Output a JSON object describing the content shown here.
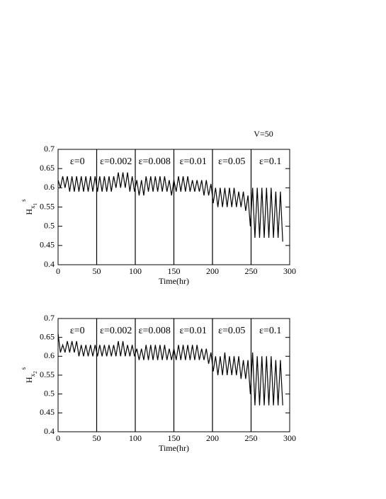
{
  "chart_data": [
    {
      "type": "line",
      "title": "V=50",
      "xlabel": "Time(hr)",
      "ylabel": "H",
      "ylabel_sub": "x",
      "ylabel_subsub": "1",
      "ylabel_sup": "s",
      "xlim": [
        0,
        300
      ],
      "xticks": [
        0,
        50,
        100,
        150,
        200,
        250,
        300
      ],
      "ylim": [
        0.4,
        0.7
      ],
      "yticks": [
        0.4,
        0.45,
        0.5,
        0.55,
        0.6,
        0.65,
        0.7
      ],
      "vlines": [
        50,
        100,
        150,
        200,
        250
      ],
      "annotations": [
        "ε=0",
        "ε=0.002",
        "ε=0.008",
        "ε=0.01",
        "ε=0.05",
        "ε=0.1"
      ],
      "x": [
        0,
        3,
        6,
        9,
        12,
        15,
        18,
        21,
        24,
        27,
        30,
        33,
        36,
        39,
        42,
        45,
        48,
        51,
        54,
        57,
        60,
        63,
        66,
        69,
        72,
        75,
        78,
        81,
        84,
        87,
        90,
        93,
        96,
        99,
        102,
        105,
        108,
        111,
        114,
        117,
        120,
        123,
        126,
        129,
        132,
        135,
        138,
        141,
        144,
        147,
        150,
        153,
        156,
        159,
        162,
        165,
        168,
        171,
        174,
        177,
        180,
        183,
        186,
        189,
        192,
        195,
        198,
        201,
        204,
        207,
        210,
        213,
        216,
        219,
        222,
        225,
        228,
        231,
        234,
        237,
        240,
        243,
        246,
        249,
        252,
        255,
        258,
        261,
        264,
        267,
        270,
        273,
        276,
        279,
        282,
        285,
        288,
        291
      ],
      "series": [
        {
          "color": "#000000",
          "values": [
            0.62,
            0.6,
            0.63,
            0.6,
            0.63,
            0.59,
            0.63,
            0.59,
            0.63,
            0.59,
            0.63,
            0.59,
            0.63,
            0.59,
            0.63,
            0.59,
            0.63,
            0.59,
            0.63,
            0.59,
            0.63,
            0.59,
            0.63,
            0.59,
            0.63,
            0.6,
            0.64,
            0.6,
            0.64,
            0.6,
            0.64,
            0.59,
            0.63,
            0.59,
            0.62,
            0.58,
            0.62,
            0.58,
            0.63,
            0.59,
            0.63,
            0.59,
            0.63,
            0.59,
            0.63,
            0.59,
            0.63,
            0.59,
            0.62,
            0.58,
            0.62,
            0.59,
            0.63,
            0.59,
            0.63,
            0.59,
            0.63,
            0.59,
            0.62,
            0.59,
            0.62,
            0.59,
            0.62,
            0.58,
            0.62,
            0.58,
            0.61,
            0.56,
            0.6,
            0.55,
            0.6,
            0.55,
            0.6,
            0.55,
            0.6,
            0.55,
            0.6,
            0.55,
            0.59,
            0.55,
            0.59,
            0.54,
            0.58,
            0.5,
            0.6,
            0.47,
            0.6,
            0.47,
            0.6,
            0.47,
            0.6,
            0.47,
            0.6,
            0.47,
            0.59,
            0.47,
            0.59,
            0.46
          ]
        }
      ]
    },
    {
      "type": "line",
      "xlabel": "Time(hr)",
      "ylabel": "H",
      "ylabel_sub": "x",
      "ylabel_subsub": "2",
      "ylabel_sup": "s",
      "xlim": [
        0,
        300
      ],
      "xticks": [
        0,
        50,
        100,
        150,
        200,
        250,
        300
      ],
      "ylim": [
        0.4,
        0.7
      ],
      "yticks": [
        0.4,
        0.45,
        0.5,
        0.55,
        0.6,
        0.65,
        0.7
      ],
      "vlines": [
        50,
        100,
        150,
        200,
        250
      ],
      "annotations": [
        "ε=0",
        "ε=0.002",
        "ε=0.008",
        "ε=0.01",
        "ε=0.05",
        "ε=0.1"
      ],
      "x": [
        0,
        3,
        6,
        9,
        12,
        15,
        18,
        21,
        24,
        27,
        30,
        33,
        36,
        39,
        42,
        45,
        48,
        51,
        54,
        57,
        60,
        63,
        66,
        69,
        72,
        75,
        78,
        81,
        84,
        87,
        90,
        93,
        96,
        99,
        102,
        105,
        108,
        111,
        114,
        117,
        120,
        123,
        126,
        129,
        132,
        135,
        138,
        141,
        144,
        147,
        150,
        153,
        156,
        159,
        162,
        165,
        168,
        171,
        174,
        177,
        180,
        183,
        186,
        189,
        192,
        195,
        198,
        201,
        204,
        207,
        210,
        213,
        216,
        219,
        222,
        225,
        228,
        231,
        234,
        237,
        240,
        243,
        246,
        249,
        252,
        255,
        258,
        261,
        264,
        267,
        270,
        273,
        276,
        279,
        282,
        285,
        288,
        291
      ],
      "series": [
        {
          "color": "#000000",
          "values": [
            0.66,
            0.61,
            0.63,
            0.61,
            0.64,
            0.61,
            0.64,
            0.61,
            0.64,
            0.6,
            0.63,
            0.6,
            0.63,
            0.6,
            0.63,
            0.6,
            0.63,
            0.6,
            0.63,
            0.6,
            0.63,
            0.6,
            0.63,
            0.6,
            0.63,
            0.6,
            0.64,
            0.6,
            0.64,
            0.6,
            0.63,
            0.6,
            0.63,
            0.6,
            0.62,
            0.59,
            0.62,
            0.59,
            0.63,
            0.59,
            0.63,
            0.59,
            0.63,
            0.59,
            0.63,
            0.59,
            0.63,
            0.59,
            0.62,
            0.59,
            0.62,
            0.59,
            0.63,
            0.59,
            0.63,
            0.59,
            0.63,
            0.59,
            0.63,
            0.59,
            0.63,
            0.59,
            0.62,
            0.59,
            0.62,
            0.58,
            0.61,
            0.56,
            0.6,
            0.55,
            0.6,
            0.55,
            0.61,
            0.55,
            0.6,
            0.55,
            0.6,
            0.55,
            0.6,
            0.54,
            0.59,
            0.54,
            0.59,
            0.5,
            0.61,
            0.47,
            0.6,
            0.47,
            0.6,
            0.47,
            0.6,
            0.47,
            0.6,
            0.47,
            0.59,
            0.47,
            0.59,
            0.47
          ]
        }
      ]
    }
  ]
}
